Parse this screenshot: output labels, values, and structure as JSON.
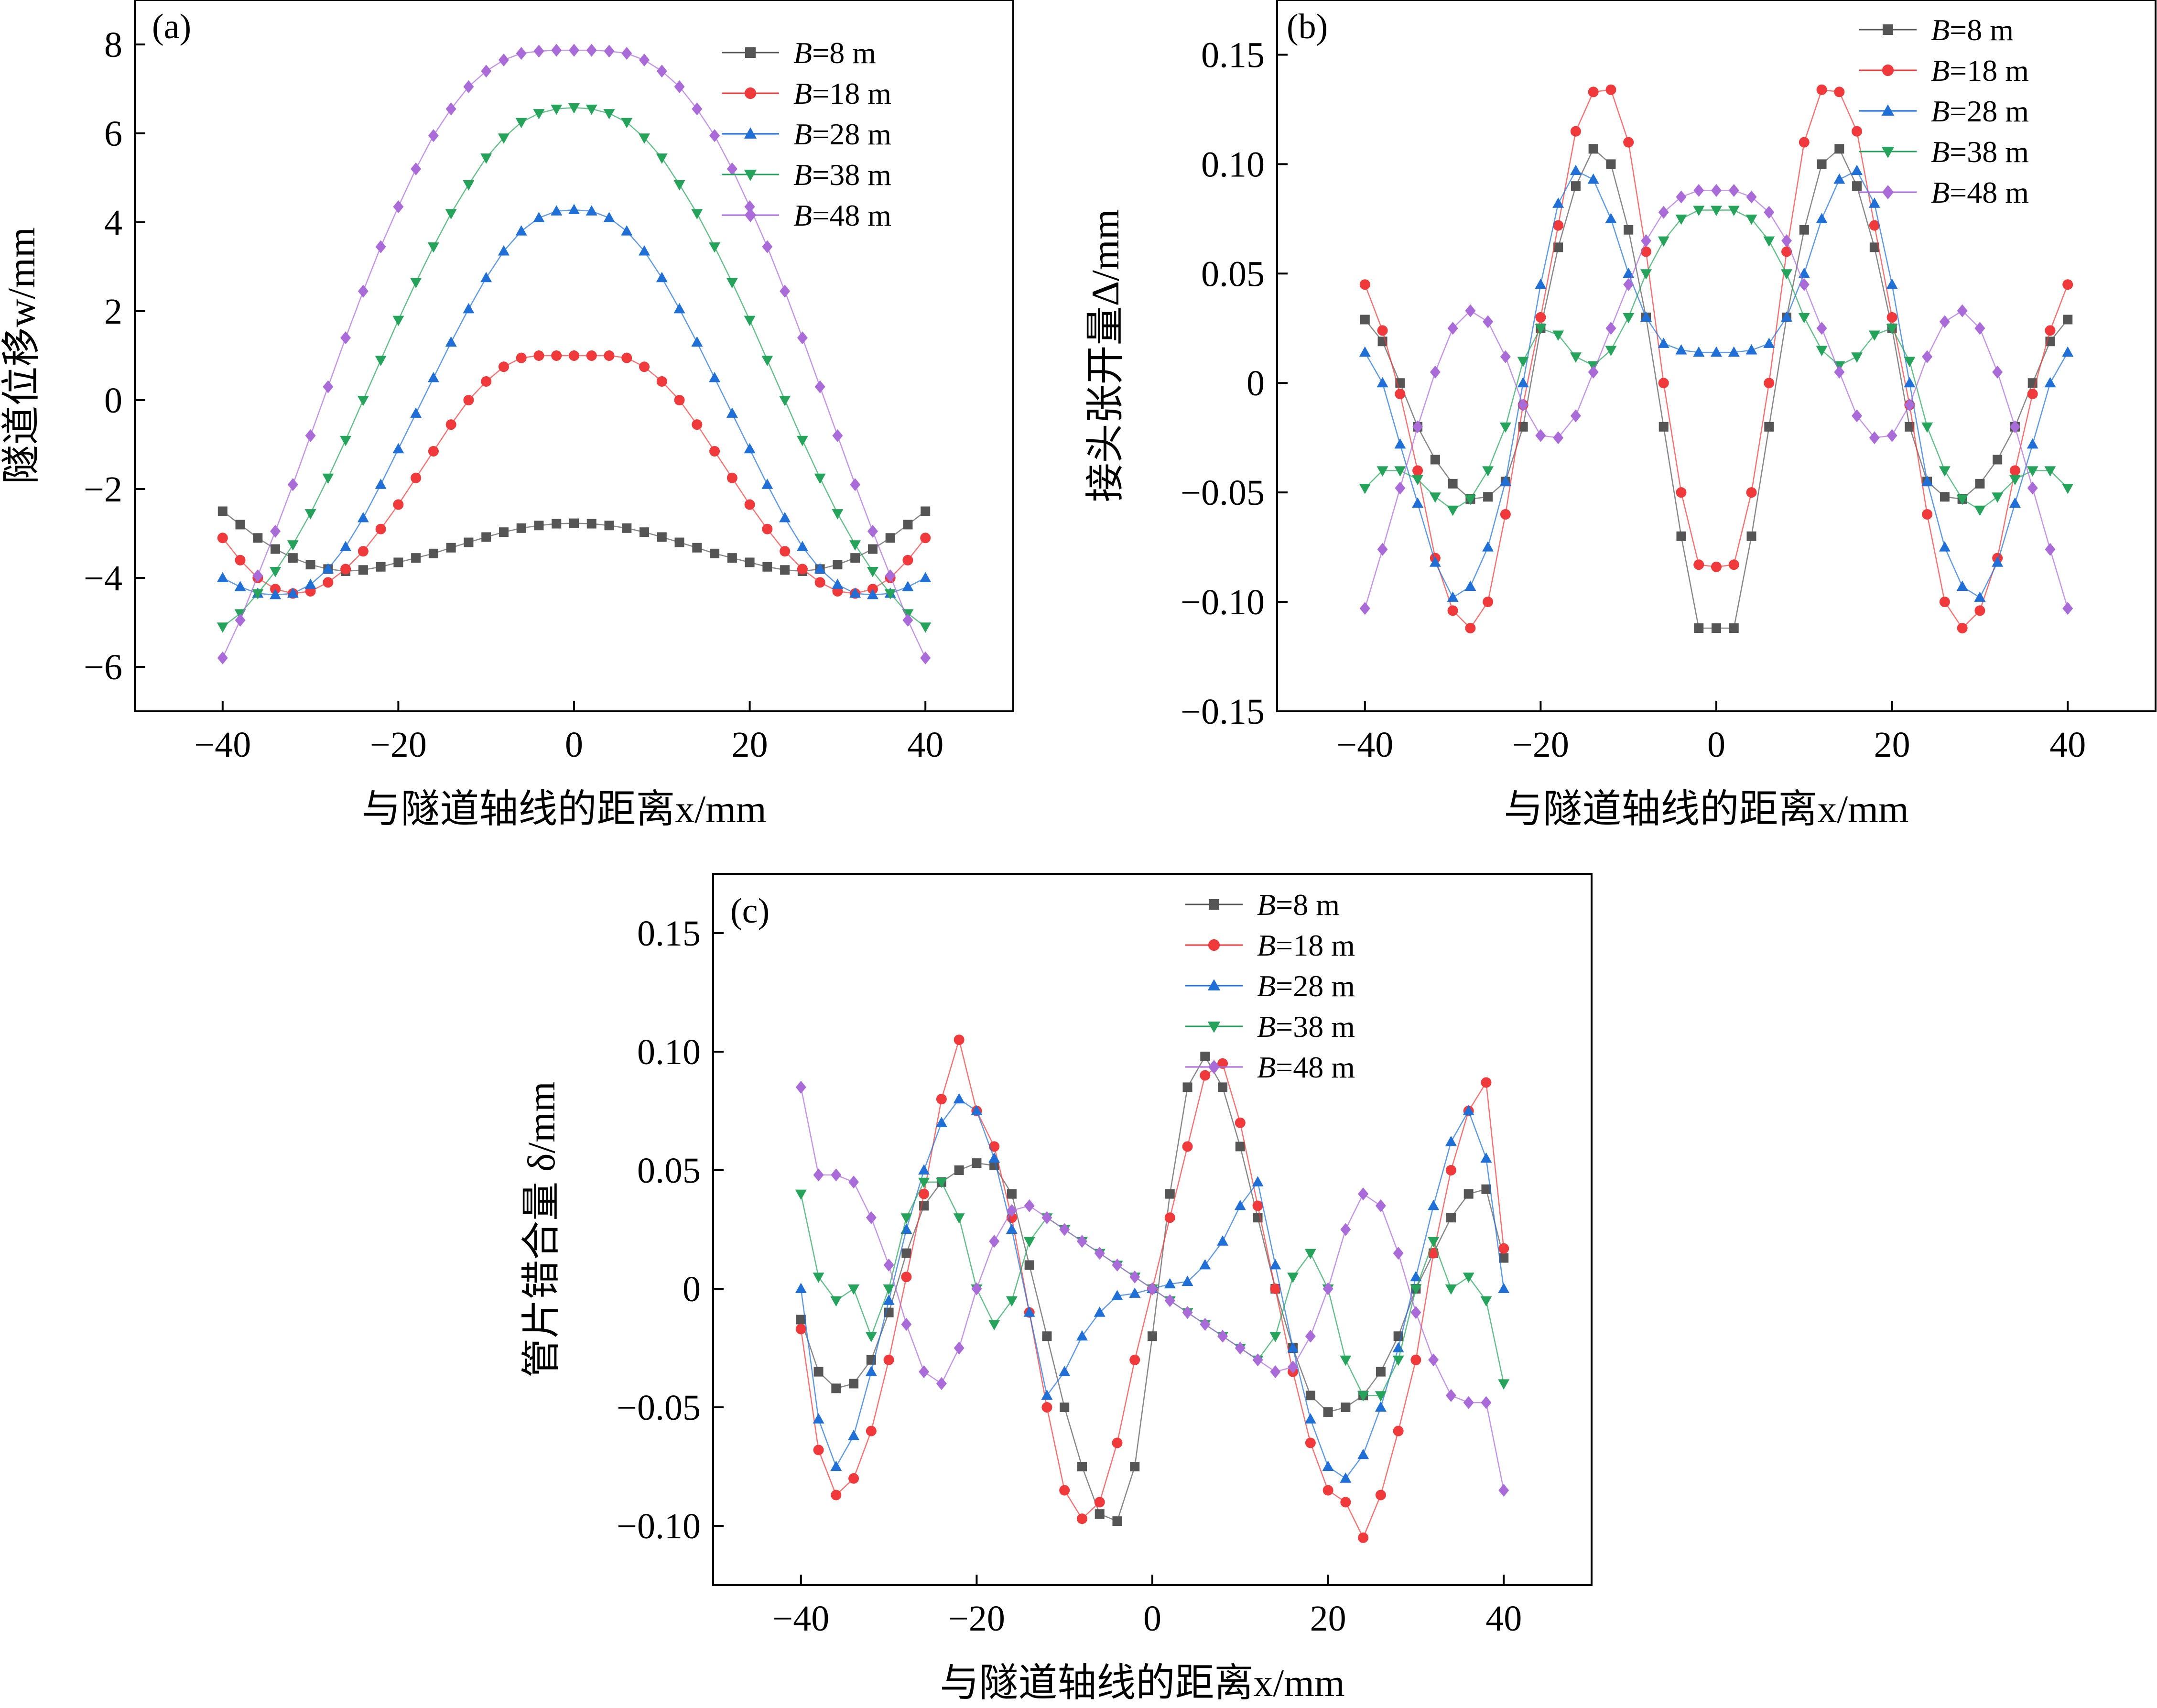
{
  "legend_names": [
    "B=8 m",
    "B=18 m",
    "B=28 m",
    "B=38 m",
    "B=48 m"
  ],
  "legend_parts": [
    {
      "var": "B",
      "rest": "=8 m"
    },
    {
      "var": "B",
      "rest": "=18 m"
    },
    {
      "var": "B",
      "rest": "=28 m"
    },
    {
      "var": "B",
      "rest": "=38 m"
    },
    {
      "var": "B",
      "rest": "=48 m"
    }
  ],
  "colors": [
    "#555555",
    "#f0393b",
    "#1f6fd6",
    "#25a35a",
    "#a96bd8"
  ],
  "markers": [
    "square",
    "circle",
    "triangle-up",
    "triangle-down",
    "diamond"
  ],
  "chart_data": [
    {
      "panel": "(a)",
      "type": "line",
      "xlabel": "与隧道轴线的距离x/mm",
      "ylabel": "隧道位移w/mm",
      "xlim": [
        -50,
        50
      ],
      "ylim": [
        -7,
        9
      ],
      "xticks": [
        -40,
        -20,
        0,
        20,
        40
      ],
      "xtick_labels": [
        "−40",
        "−20",
        "0",
        "20",
        "40"
      ],
      "yticks": [
        -6,
        -4,
        -2,
        0,
        2,
        4,
        6,
        8
      ],
      "ytick_labels": [
        "−6",
        "−4",
        "−2",
        "0",
        "2",
        "4",
        "6",
        "8"
      ],
      "x": [
        -40,
        -38,
        -36,
        -34,
        -32,
        -30,
        -28,
        -26,
        -24,
        -22,
        -20,
        -18,
        -16,
        -14,
        -12,
        -10,
        -8,
        -6,
        -4,
        -2,
        0,
        2,
        4,
        6,
        8,
        10,
        12,
        14,
        16,
        18,
        20,
        22,
        24,
        26,
        28,
        30,
        32,
        34,
        36,
        38,
        40
      ],
      "series": [
        {
          "name": "B=8 m",
          "values": [
            -2.5,
            -2.8,
            -3.1,
            -3.35,
            -3.55,
            -3.7,
            -3.8,
            -3.85,
            -3.82,
            -3.75,
            -3.65,
            -3.55,
            -3.45,
            -3.32,
            -3.2,
            -3.08,
            -2.97,
            -2.88,
            -2.82,
            -2.78,
            -2.77,
            -2.78,
            -2.82,
            -2.88,
            -2.97,
            -3.08,
            -3.2,
            -3.32,
            -3.45,
            -3.55,
            -3.65,
            -3.75,
            -3.82,
            -3.85,
            -3.8,
            -3.7,
            -3.55,
            -3.35,
            -3.1,
            -2.8,
            -2.5
          ]
        },
        {
          "name": "B=18 m",
          "values": [
            -3.1,
            -3.6,
            -4.0,
            -4.25,
            -4.35,
            -4.3,
            -4.1,
            -3.8,
            -3.4,
            -2.9,
            -2.35,
            -1.75,
            -1.15,
            -0.55,
            -0.0,
            0.42,
            0.75,
            0.95,
            1.0,
            1.0,
            1.0,
            1.0,
            1.0,
            0.95,
            0.75,
            0.42,
            0.0,
            -0.55,
            -1.15,
            -1.75,
            -2.35,
            -2.9,
            -3.4,
            -3.8,
            -4.1,
            -4.3,
            -4.35,
            -4.25,
            -4.0,
            -3.6,
            -3.1
          ]
        },
        {
          "name": "B=28 m",
          "values": [
            -4.0,
            -4.2,
            -4.35,
            -4.38,
            -4.35,
            -4.15,
            -3.8,
            -3.3,
            -2.65,
            -1.9,
            -1.1,
            -0.3,
            0.5,
            1.3,
            2.05,
            2.75,
            3.35,
            3.8,
            4.1,
            4.25,
            4.28,
            4.25,
            4.1,
            3.8,
            3.35,
            2.75,
            2.05,
            1.3,
            0.5,
            -0.3,
            -1.1,
            -1.9,
            -2.65,
            -3.3,
            -3.8,
            -4.15,
            -4.35,
            -4.38,
            -4.35,
            -4.2,
            -4.0
          ]
        },
        {
          "name": "B=38 m",
          "values": [
            -5.1,
            -4.8,
            -4.35,
            -3.85,
            -3.25,
            -2.55,
            -1.75,
            -0.9,
            0.0,
            0.9,
            1.8,
            2.65,
            3.45,
            4.2,
            4.85,
            5.45,
            5.9,
            6.25,
            6.45,
            6.55,
            6.58,
            6.55,
            6.45,
            6.25,
            5.9,
            5.45,
            4.85,
            4.2,
            3.45,
            2.65,
            1.8,
            0.9,
            0.0,
            -0.9,
            -1.75,
            -2.55,
            -3.25,
            -3.85,
            -4.35,
            -4.8,
            -5.1
          ]
        },
        {
          "name": "B=48 m",
          "values": [
            -5.8,
            -4.95,
            -3.95,
            -2.95,
            -1.9,
            -0.8,
            0.3,
            1.4,
            2.45,
            3.45,
            4.35,
            5.2,
            5.95,
            6.55,
            7.05,
            7.4,
            7.65,
            7.8,
            7.85,
            7.87,
            7.87,
            7.87,
            7.85,
            7.8,
            7.65,
            7.4,
            7.05,
            6.55,
            5.95,
            5.2,
            4.35,
            3.45,
            2.45,
            1.4,
            0.3,
            -0.8,
            -1.9,
            -2.95,
            -3.95,
            -4.95,
            -5.8
          ]
        }
      ]
    },
    {
      "panel": "(b)",
      "type": "line",
      "xlabel": "与隧道轴线的距离x/mm",
      "ylabel": "接头张开量Δ/mm",
      "xlim": [
        -50,
        50
      ],
      "ylim": [
        -0.15,
        0.175
      ],
      "xticks": [
        -40,
        -20,
        0,
        20,
        40
      ],
      "xtick_labels": [
        "−40",
        "−20",
        "0",
        "20",
        "40"
      ],
      "yticks": [
        -0.15,
        -0.1,
        -0.05,
        0,
        0.05,
        0.1,
        0.15
      ],
      "ytick_labels": [
        "−0.15",
        "−0.10",
        "−0.05",
        "0",
        "0.05",
        "0.10",
        "0.15"
      ],
      "x": [
        -40,
        -38,
        -36,
        -34,
        -32,
        -30,
        -28,
        -26,
        -24,
        -22,
        -20,
        -18,
        -16,
        -14,
        -12,
        -10,
        -8,
        -6,
        -4,
        -2,
        0,
        2,
        4,
        6,
        8,
        10,
        12,
        14,
        16,
        18,
        20,
        22,
        24,
        26,
        28,
        30,
        32,
        34,
        36,
        38,
        40
      ],
      "series": [
        {
          "name": "B=8 m",
          "values": [
            0.029,
            0.019,
            0.0,
            -0.02,
            -0.035,
            -0.046,
            -0.053,
            -0.052,
            -0.045,
            -0.02,
            0.025,
            0.062,
            0.09,
            0.107,
            0.1,
            0.07,
            0.03,
            -0.02,
            -0.07,
            -0.112,
            -0.112,
            -0.112,
            -0.07,
            -0.02,
            0.03,
            0.07,
            0.1,
            0.107,
            0.09,
            0.062,
            0.025,
            -0.02,
            -0.045,
            -0.052,
            -0.053,
            -0.046,
            -0.035,
            -0.02,
            0.0,
            0.019,
            0.029
          ]
        },
        {
          "name": "B=18 m",
          "values": [
            0.045,
            0.024,
            -0.005,
            -0.04,
            -0.08,
            -0.104,
            -0.112,
            -0.1,
            -0.06,
            -0.01,
            0.03,
            0.072,
            0.115,
            0.133,
            0.134,
            0.11,
            0.06,
            0.0,
            -0.05,
            -0.083,
            -0.084,
            -0.083,
            -0.05,
            0.0,
            0.06,
            0.11,
            0.134,
            0.133,
            0.115,
            0.072,
            0.03,
            -0.01,
            -0.06,
            -0.1,
            -0.112,
            -0.104,
            -0.08,
            -0.04,
            -0.005,
            0.024,
            0.045
          ]
        },
        {
          "name": "B=28 m",
          "values": [
            0.014,
            0.0,
            -0.028,
            -0.055,
            -0.082,
            -0.098,
            -0.093,
            -0.075,
            -0.045,
            0.0,
            0.045,
            0.082,
            0.097,
            0.093,
            0.075,
            0.05,
            0.03,
            0.018,
            0.015,
            0.014,
            0.014,
            0.014,
            0.015,
            0.018,
            0.03,
            0.05,
            0.075,
            0.093,
            0.097,
            0.082,
            0.045,
            0.0,
            -0.045,
            -0.075,
            -0.093,
            -0.098,
            -0.082,
            -0.055,
            -0.028,
            0.0,
            0.014
          ]
        },
        {
          "name": "B=38 m",
          "values": [
            -0.048,
            -0.04,
            -0.04,
            -0.044,
            -0.052,
            -0.058,
            -0.053,
            -0.04,
            -0.02,
            0.01,
            0.025,
            0.022,
            0.012,
            0.008,
            0.015,
            0.03,
            0.05,
            0.065,
            0.075,
            0.079,
            0.079,
            0.079,
            0.075,
            0.065,
            0.05,
            0.03,
            0.015,
            0.008,
            0.012,
            0.022,
            0.025,
            0.01,
            -0.02,
            -0.04,
            -0.053,
            -0.058,
            -0.052,
            -0.044,
            -0.04,
            -0.04,
            -0.048
          ]
        },
        {
          "name": "B=48 m",
          "values": [
            -0.103,
            -0.076,
            -0.048,
            -0.02,
            0.005,
            0.025,
            0.033,
            0.028,
            0.012,
            -0.01,
            -0.024,
            -0.025,
            -0.015,
            0.005,
            0.025,
            0.045,
            0.065,
            0.078,
            0.085,
            0.088,
            0.088,
            0.088,
            0.085,
            0.078,
            0.065,
            0.045,
            0.025,
            0.005,
            -0.015,
            -0.025,
            -0.024,
            -0.01,
            0.012,
            0.028,
            0.033,
            0.025,
            0.005,
            -0.02,
            -0.048,
            -0.076,
            -0.103
          ]
        }
      ]
    },
    {
      "panel": "(c)",
      "type": "line",
      "xlabel": "与隧道轴线的距离x/mm",
      "ylabel": "管片错合量 δ/mm",
      "xlim": [
        -50,
        50
      ],
      "ylim": [
        -0.125,
        0.175
      ],
      "xticks": [
        -40,
        -20,
        0,
        20,
        40
      ],
      "xtick_labels": [
        "−40",
        "−20",
        "0",
        "20",
        "40"
      ],
      "yticks": [
        -0.1,
        -0.05,
        0,
        0.05,
        0.1,
        0.15
      ],
      "ytick_labels": [
        "−0.10",
        "−0.05",
        "0",
        "0.05",
        "0.10",
        "0.15"
      ],
      "x": [
        -40,
        -38,
        -36,
        -34,
        -32,
        -30,
        -28,
        -26,
        -24,
        -22,
        -20,
        -18,
        -16,
        -14,
        -12,
        -10,
        -8,
        -6,
        -4,
        -2,
        0,
        2,
        4,
        6,
        8,
        10,
        12,
        14,
        16,
        18,
        20,
        22,
        24,
        26,
        28,
        30,
        32,
        34,
        36,
        38,
        40
      ],
      "series": [
        {
          "name": "B=8 m",
          "values": [
            -0.013,
            -0.035,
            -0.042,
            -0.04,
            -0.03,
            -0.01,
            0.015,
            0.035,
            0.045,
            0.05,
            0.053,
            0.052,
            0.04,
            0.01,
            -0.02,
            -0.05,
            -0.075,
            -0.095,
            -0.098,
            -0.075,
            -0.02,
            0.04,
            0.085,
            0.098,
            0.085,
            0.06,
            0.03,
            0.0,
            -0.025,
            -0.045,
            -0.052,
            -0.05,
            -0.045,
            -0.035,
            -0.02,
            0.0,
            0.015,
            0.03,
            0.04,
            0.042,
            0.013
          ]
        },
        {
          "name": "B=18 m",
          "values": [
            -0.017,
            -0.068,
            -0.087,
            -0.08,
            -0.06,
            -0.03,
            0.005,
            0.04,
            0.08,
            0.105,
            0.075,
            0.06,
            0.03,
            -0.01,
            -0.05,
            -0.085,
            -0.097,
            -0.09,
            -0.065,
            -0.03,
            0.0,
            0.03,
            0.06,
            0.09,
            0.095,
            0.07,
            0.035,
            0.0,
            -0.035,
            -0.065,
            -0.085,
            -0.09,
            -0.105,
            -0.087,
            -0.06,
            -0.03,
            0.015,
            0.05,
            0.075,
            0.087,
            0.017
          ]
        },
        {
          "name": "B=28 m",
          "values": [
            0.0,
            -0.055,
            -0.075,
            -0.062,
            -0.035,
            -0.005,
            0.025,
            0.05,
            0.07,
            0.08,
            0.075,
            0.055,
            0.025,
            -0.01,
            -0.045,
            -0.035,
            -0.02,
            -0.01,
            -0.003,
            -0.002,
            0.0,
            0.002,
            0.003,
            0.01,
            0.02,
            0.035,
            0.045,
            0.01,
            -0.025,
            -0.055,
            -0.075,
            -0.08,
            -0.07,
            -0.05,
            -0.025,
            0.005,
            0.035,
            0.062,
            0.075,
            0.055,
            0.0
          ]
        },
        {
          "name": "B=38 m",
          "values": [
            0.04,
            0.005,
            -0.005,
            0.0,
            -0.02,
            0.0,
            0.03,
            0.045,
            0.045,
            0.03,
            0.0,
            -0.015,
            -0.005,
            0.02,
            0.03,
            0.025,
            0.02,
            0.015,
            0.01,
            0.005,
            0.0,
            -0.005,
            -0.01,
            -0.015,
            -0.02,
            -0.025,
            -0.03,
            -0.02,
            0.005,
            0.015,
            0.0,
            -0.03,
            -0.045,
            -0.045,
            -0.03,
            0.0,
            0.02,
            0.0,
            0.005,
            -0.005,
            -0.04
          ]
        },
        {
          "name": "B=48 m",
          "values": [
            0.085,
            0.048,
            0.048,
            0.045,
            0.03,
            0.01,
            -0.015,
            -0.035,
            -0.04,
            -0.025,
            0.0,
            0.02,
            0.033,
            0.035,
            0.03,
            0.025,
            0.02,
            0.015,
            0.01,
            0.005,
            0.0,
            -0.005,
            -0.01,
            -0.015,
            -0.02,
            -0.025,
            -0.03,
            -0.035,
            -0.033,
            -0.02,
            0.0,
            0.025,
            0.04,
            0.035,
            0.015,
            -0.01,
            -0.03,
            -0.045,
            -0.048,
            -0.048,
            -0.085
          ]
        }
      ]
    }
  ]
}
